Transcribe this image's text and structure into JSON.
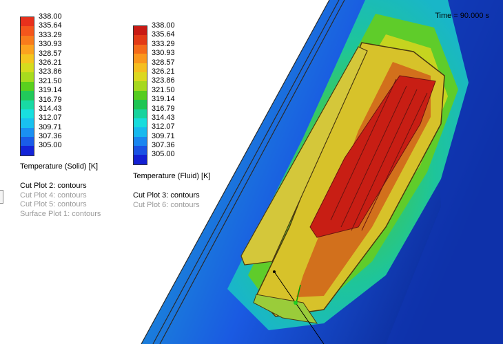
{
  "legend_solid": {
    "title": "Temperature (Solid) [K]",
    "ticks": [
      "338.00",
      "335.64",
      "333.29",
      "330.93",
      "328.57",
      "326.21",
      "323.86",
      "321.50",
      "319.14",
      "316.79",
      "314.43",
      "312.07",
      "309.71",
      "307.36",
      "305.00"
    ],
    "colors": [
      "#e8301c",
      "#f4561c",
      "#f87c1c",
      "#fca31f",
      "#f5c61f",
      "#d6dc1e",
      "#a8dc1e",
      "#5ad01e",
      "#22c95a",
      "#19d9a4",
      "#19dfdf",
      "#19c1ef",
      "#1a90f2",
      "#1a5ce8",
      "#1323d8"
    ]
  },
  "legend_fluid": {
    "title": "Temperature (Fluid) [K]",
    "ticks": [
      "338.00",
      "335.64",
      "333.29",
      "330.93",
      "328.57",
      "326.21",
      "323.86",
      "321.50",
      "319.14",
      "316.79",
      "314.43",
      "312.07",
      "309.71",
      "307.36",
      "305.00"
    ],
    "colors": [
      "#c81a14",
      "#e23a16",
      "#f46a1a",
      "#fa971d",
      "#f5be1f",
      "#dcd81f",
      "#a6d81e",
      "#55cc1e",
      "#1ec553",
      "#17d39d",
      "#17dcdc",
      "#17b9ee",
      "#1a86f0",
      "#1a52e4",
      "#1320d3"
    ]
  },
  "cut_plots_left": [
    {
      "label": "Cut Plot 2: contours",
      "active": true
    },
    {
      "label": "Cut Plot 4: contours",
      "active": false
    },
    {
      "label": "Cut Plot 5: contours",
      "active": false
    },
    {
      "label": "Surface Plot 1: contours",
      "active": false
    }
  ],
  "cut_plots_right": [
    {
      "label": "Cut Plot 3: contours",
      "active": true
    },
    {
      "label": "Cut Plot 6: contours",
      "active": false
    }
  ],
  "time_label": "Time = 90.000 s",
  "colors": {
    "background": "#ffffff",
    "deep_blue": "#0a1f8c",
    "hot": "#c81e14"
  },
  "icons": [
    "triad-axis-icon",
    "panel-edge-handle-icon"
  ]
}
